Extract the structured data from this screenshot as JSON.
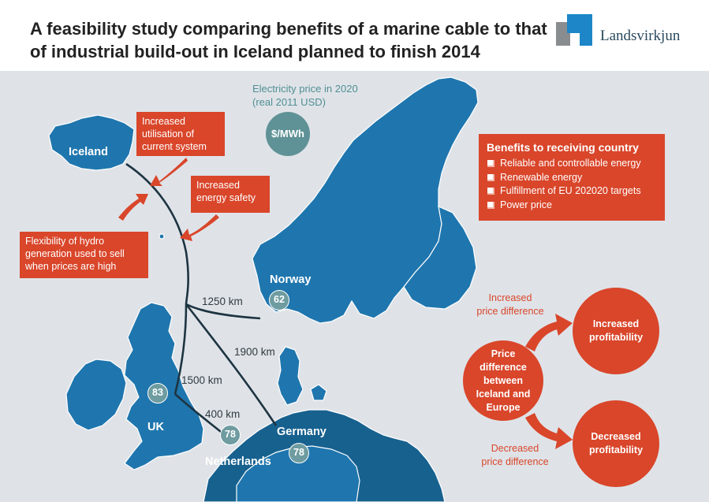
{
  "header": {
    "title": "A feasibility study comparing benefits of a marine cable to that of industrial build-out in Iceland planned to finish 2014",
    "logo_text": "Landsvirkjun"
  },
  "price_legend": {
    "caption": "Electricity price in 2020\n(real 2011 USD)",
    "unit": "$/MWh"
  },
  "callouts": {
    "utilisation": "Increased\nutilisation of\ncurrent system",
    "energy_safety": "Increased\nenergy safety",
    "hydro": "Flexibility of hydro\ngeneration used to sell\nwhen prices are high"
  },
  "countries": {
    "iceland": "Iceland",
    "norway": "Norway",
    "uk": "UK",
    "germany": "Germany",
    "netherlands": "Netherlands"
  },
  "prices": {
    "norway": "62",
    "uk": "83",
    "netherlands": "78",
    "germany": "78"
  },
  "distances": {
    "norway": "1250 km",
    "germany": "1900 km",
    "uk": "1500 km",
    "netherlands": "400 km"
  },
  "benefits": {
    "title": "Benefits to receiving country",
    "items": [
      "Reliable and controllable energy",
      "Renewable energy",
      "Fulfillment of EU 202020 targets",
      "Power price"
    ]
  },
  "flow": {
    "center": "Price\ndifference\nbetween\nIceland and\nEurope",
    "increased_label": "Increased\nprice difference",
    "increased_result": "Increased\nprofitability",
    "decreased_label": "Decreased\nprice difference",
    "decreased_result": "Decreased\nprofitability"
  },
  "colors": {
    "accent": "#d9462a",
    "land": "#1f76ae",
    "sea": "#dfe3e8",
    "price_bubble": "#6e9ca0",
    "cable": "#1d3441"
  }
}
